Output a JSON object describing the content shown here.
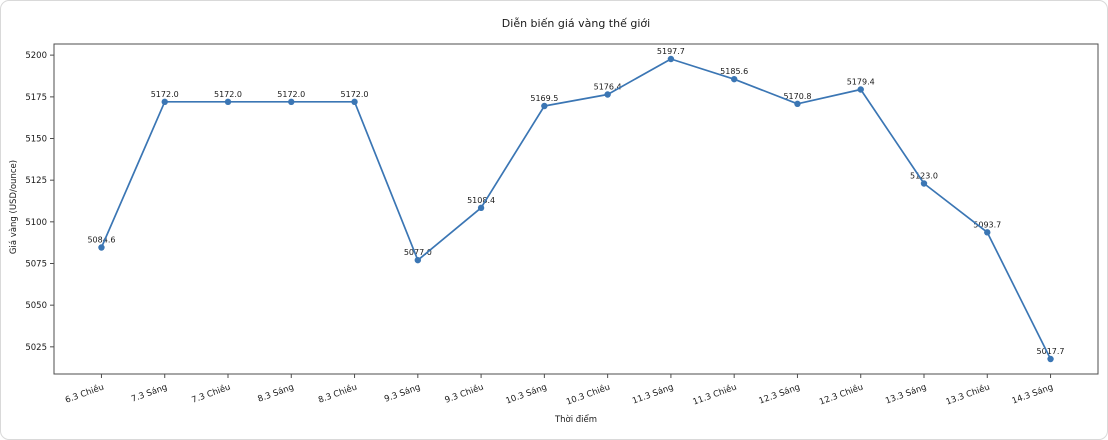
{
  "chart_data": {
    "type": "line",
    "title": "Diễn biến giá vàng thế giới",
    "xlabel": "Thời điểm",
    "ylabel": "Giá vàng (USD/ounce)",
    "categories": [
      "6.3 Chiều",
      "7.3 Sáng",
      "7.3 Chiều",
      "8.3 Sáng",
      "8.3 Chiều",
      "9.3 Sáng",
      "9.3 Chiều",
      "10.3 Sáng",
      "10.3 Chiều",
      "11.3 Sáng",
      "11.3 Chiều",
      "12.3 Sáng",
      "12.3 Chiều",
      "13.3 Sáng",
      "13.3 Chiều",
      "14.3 Sáng"
    ],
    "values": [
      5084.6,
      5172.0,
      5172.0,
      5172.0,
      5172.0,
      5077.0,
      5108.4,
      5169.5,
      5176.4,
      5197.7,
      5185.6,
      5170.8,
      5179.4,
      5123.0,
      5093.7,
      5017.7
    ],
    "point_labels": [
      "5084.6",
      "5172.0",
      "5172.0",
      "5172.0",
      "5172.0",
      "5077.0",
      "5108.4",
      "5169.5",
      "5176.4",
      "5197.7",
      "5185.6",
      "5170.8",
      "5179.4",
      "5123.0",
      "5093.7",
      "5017.7"
    ],
    "y_ticks": [
      5025,
      5050,
      5075,
      5100,
      5125,
      5150,
      5175,
      5200
    ],
    "ylim": [
      5008.7,
      5206.7
    ],
    "x_tick_rotation_deg": -20,
    "grid": false,
    "legend_position": "none",
    "line_color": "#3b76b4",
    "marker_color": "#3b76b4",
    "marker": "circle",
    "axis_color": "#4d4d4d",
    "text_color": "#1a1a1a"
  }
}
